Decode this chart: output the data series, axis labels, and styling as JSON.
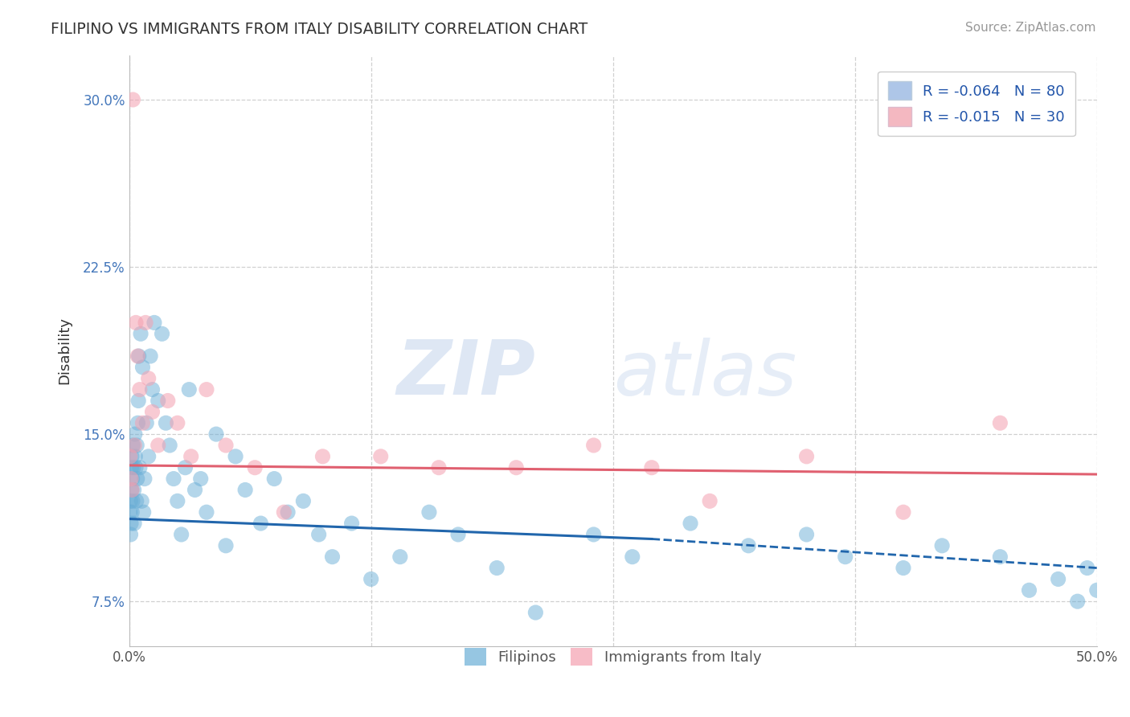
{
  "title": "FILIPINO VS IMMIGRANTS FROM ITALY DISABILITY CORRELATION CHART",
  "source_text": "Source: ZipAtlas.com",
  "ylabel": "Disability",
  "xlim": [
    0.0,
    50.0
  ],
  "ylim": [
    5.5,
    32.0
  ],
  "ytick_positions": [
    7.5,
    15.0,
    22.5,
    30.0
  ],
  "ytick_labels": [
    "7.5%",
    "15.0%",
    "22.5%",
    "30.0%"
  ],
  "blue_color": "#6aaed6",
  "pink_color": "#f4a0b0",
  "blue_line_color": "#2166ac",
  "pink_line_color": "#e06070",
  "blue_line_start_y": 11.2,
  "blue_line_end_solid_x": 27.0,
  "blue_line_end_solid_y": 10.3,
  "blue_line_end_dash_x": 50.0,
  "blue_line_end_dash_y": 9.0,
  "pink_line_start_y": 13.6,
  "pink_line_end_y": 13.2,
  "filipinos_x": [
    0.05,
    0.07,
    0.08,
    0.1,
    0.12,
    0.13,
    0.14,
    0.15,
    0.17,
    0.18,
    0.2,
    0.22,
    0.25,
    0.27,
    0.3,
    0.32,
    0.35,
    0.38,
    0.4,
    0.42,
    0.45,
    0.48,
    0.5,
    0.55,
    0.6,
    0.65,
    0.7,
    0.75,
    0.8,
    0.9,
    1.0,
    1.1,
    1.2,
    1.3,
    1.5,
    1.7,
    1.9,
    2.1,
    2.3,
    2.5,
    2.7,
    2.9,
    3.1,
    3.4,
    3.7,
    4.0,
    4.5,
    5.0,
    5.5,
    6.0,
    6.8,
    7.5,
    8.2,
    9.0,
    9.8,
    10.5,
    11.5,
    12.5,
    14.0,
    15.5,
    17.0,
    19.0,
    21.0,
    24.0,
    26.0,
    29.0,
    32.0,
    35.0,
    37.0,
    40.0,
    42.0,
    45.0,
    46.5,
    48.0,
    49.0,
    49.5,
    50.0
  ],
  "filipinos_y": [
    11.5,
    12.0,
    10.5,
    11.0,
    13.5,
    12.5,
    14.0,
    11.5,
    13.0,
    12.0,
    14.5,
    13.5,
    12.5,
    11.0,
    15.0,
    14.0,
    13.5,
    12.0,
    14.5,
    13.0,
    15.5,
    16.5,
    18.5,
    13.5,
    19.5,
    12.0,
    18.0,
    11.5,
    13.0,
    15.5,
    14.0,
    18.5,
    17.0,
    20.0,
    16.5,
    19.5,
    15.5,
    14.5,
    13.0,
    12.0,
    10.5,
    13.5,
    17.0,
    12.5,
    13.0,
    11.5,
    15.0,
    10.0,
    14.0,
    12.5,
    11.0,
    13.0,
    11.5,
    12.0,
    10.5,
    9.5,
    11.0,
    8.5,
    9.5,
    11.5,
    10.5,
    9.0,
    7.0,
    10.5,
    9.5,
    11.0,
    10.0,
    10.5,
    9.5,
    9.0,
    10.0,
    9.5,
    8.0,
    8.5,
    7.5,
    9.0,
    8.0
  ],
  "italy_x": [
    0.05,
    0.1,
    0.15,
    0.2,
    0.28,
    0.35,
    0.45,
    0.55,
    0.7,
    0.85,
    1.0,
    1.2,
    1.5,
    2.0,
    2.5,
    3.2,
    4.0,
    5.0,
    6.5,
    8.0,
    10.0,
    13.0,
    16.0,
    20.0,
    24.0,
    27.0,
    30.0,
    35.0,
    40.0,
    45.0
  ],
  "italy_y": [
    14.0,
    13.0,
    12.5,
    30.0,
    14.5,
    20.0,
    18.5,
    17.0,
    15.5,
    20.0,
    17.5,
    16.0,
    14.5,
    16.5,
    15.5,
    14.0,
    17.0,
    14.5,
    13.5,
    11.5,
    14.0,
    14.0,
    13.5,
    13.5,
    14.5,
    13.5,
    12.0,
    14.0,
    11.5,
    15.5
  ]
}
